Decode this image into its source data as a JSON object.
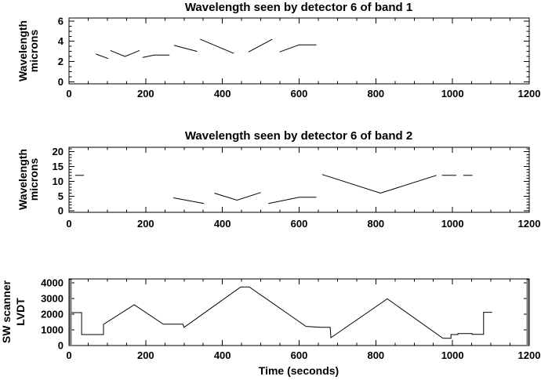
{
  "figure": {
    "background": "#ffffff",
    "line_color": "#000000",
    "num_panels": 3
  },
  "chart_data": [
    {
      "type": "line",
      "title": "Wavelength seen by detector 6 of band 1",
      "ylabel_lines": [
        "Wavelength",
        "microns"
      ],
      "xlabel": "",
      "xlim": [
        0,
        1200
      ],
      "ylim": [
        0,
        6
      ],
      "ylim_padded": [
        -0.2,
        6.3
      ],
      "xticks": [
        0,
        200,
        400,
        600,
        800,
        1000,
        1200
      ],
      "yticks": [
        0,
        2,
        4,
        6
      ],
      "x_minor": 50,
      "y_minor": 0.5,
      "grid": false,
      "legend": null,
      "segments": [
        [
          [
            70,
            2.75
          ],
          [
            102,
            2.3
          ]
        ],
        [
          [
            108,
            3.1
          ],
          [
            146,
            2.5
          ],
          [
            184,
            3.1
          ]
        ],
        [
          [
            192,
            2.4
          ],
          [
            222,
            2.65
          ],
          [
            262,
            2.65
          ]
        ],
        [
          [
            274,
            3.6
          ],
          [
            334,
            3.0
          ]
        ],
        [
          [
            342,
            4.2
          ],
          [
            430,
            2.8
          ]
        ],
        [
          [
            468,
            2.95
          ],
          [
            530,
            4.2
          ]
        ],
        [
          [
            549,
            2.95
          ],
          [
            600,
            3.65
          ],
          [
            645,
            3.65
          ]
        ]
      ]
    },
    {
      "type": "line",
      "title": "Wavelength seen by detector 6 of band 2",
      "ylabel_lines": [
        "Wavelength",
        "microns"
      ],
      "xlabel": "",
      "xlim": [
        0,
        1200
      ],
      "ylim": [
        0,
        20
      ],
      "ylim_padded": [
        -0.5,
        21.5
      ],
      "xticks": [
        0,
        200,
        400,
        600,
        800,
        1000,
        1200
      ],
      "yticks": [
        0,
        5,
        10,
        15,
        20
      ],
      "x_minor": 50,
      "y_minor": 1,
      "grid": false,
      "legend": null,
      "segments": [
        [
          [
            16,
            12
          ],
          [
            39,
            12
          ]
        ],
        [
          [
            272,
            4.4
          ],
          [
            352,
            2.5
          ]
        ],
        [
          [
            379,
            6.0
          ],
          [
            438,
            3.6
          ],
          [
            500,
            6.2
          ]
        ],
        [
          [
            520,
            2.5
          ],
          [
            600,
            4.6
          ],
          [
            645,
            4.6
          ]
        ],
        [
          [
            660,
            12.3
          ],
          [
            812,
            6.0
          ],
          [
            958,
            12.0
          ]
        ],
        [
          [
            972,
            12
          ],
          [
            1010,
            12
          ]
        ],
        [
          [
            1028,
            12
          ],
          [
            1052,
            12
          ]
        ]
      ]
    },
    {
      "type": "line",
      "title": "",
      "ylabel_lines": [
        "SW scanner",
        "LVDT"
      ],
      "xlabel": "Time (seconds)",
      "xlim": [
        0,
        1200
      ],
      "ylim": [
        0,
        4000
      ],
      "ylim_padded": [
        0,
        4250
      ],
      "xticks": [
        0,
        200,
        400,
        600,
        800,
        1000,
        1200
      ],
      "yticks": [
        0,
        1000,
        2000,
        3000,
        4000
      ],
      "x_minor": 50,
      "y_minor": 100,
      "grid": false,
      "legend": null,
      "segments": [
        [
          [
            0,
            2100
          ],
          [
            33,
            2100
          ],
          [
            33,
            700
          ],
          [
            90,
            700
          ],
          [
            90,
            1350
          ],
          [
            170,
            2600
          ],
          [
            246,
            1360
          ],
          [
            297,
            1360
          ],
          [
            300,
            1160
          ],
          [
            448,
            3740
          ],
          [
            470,
            3740
          ],
          [
            618,
            1220
          ],
          [
            658,
            1160
          ],
          [
            681,
            1160
          ],
          [
            683,
            500
          ],
          [
            830,
            2980
          ],
          [
            975,
            460
          ],
          [
            996,
            460
          ],
          [
            996,
            700
          ],
          [
            1014,
            700
          ],
          [
            1014,
            760
          ],
          [
            1051,
            760
          ],
          [
            1051,
            710
          ],
          [
            1081,
            710
          ],
          [
            1081,
            2120
          ],
          [
            1103,
            2120
          ]
        ]
      ]
    }
  ]
}
